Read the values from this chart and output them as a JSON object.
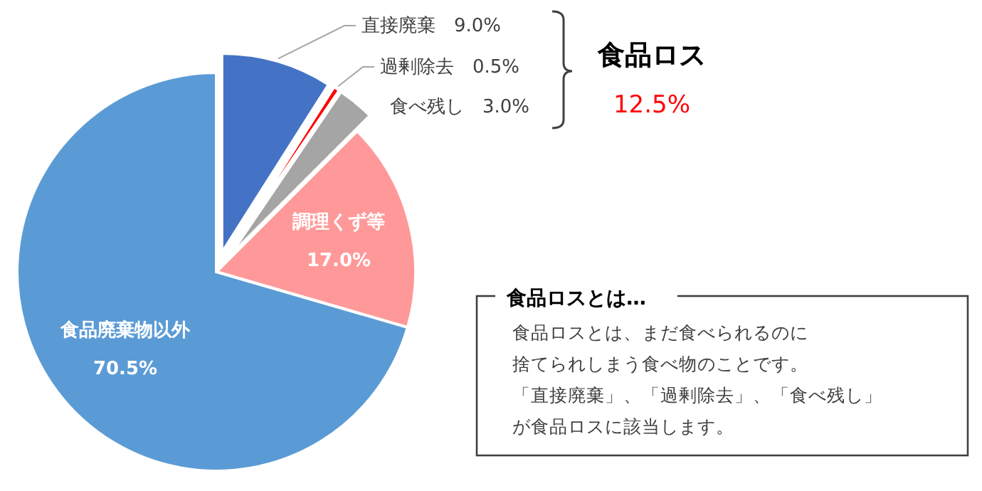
{
  "chart_data": {
    "type": "pie",
    "categories": [
      "直接廃棄",
      "過剰除去",
      "食べ残し",
      "調理くず等",
      "食品廃棄物以外"
    ],
    "values": [
      9.0,
      0.5,
      3.0,
      17.0,
      70.5
    ],
    "value_labels": [
      "9.0%",
      "0.5%",
      "3.0%",
      "17.0%",
      "70.5%"
    ],
    "colors": [
      "#4472c4",
      "#ff0000",
      "#a5a5a5",
      "#ff9999",
      "#5b9bd5"
    ],
    "legend": false,
    "annotations": [
      "食品ロス",
      "12.5%",
      "食品ロスとは…",
      "食品ロスとは、まだ食べられるのに",
      "捨てられしまう食べ物のことです。",
      "「直接廃棄」、「過剰除去」、「食べ残し」",
      "が食品ロスに該当します。"
    ]
  }
}
